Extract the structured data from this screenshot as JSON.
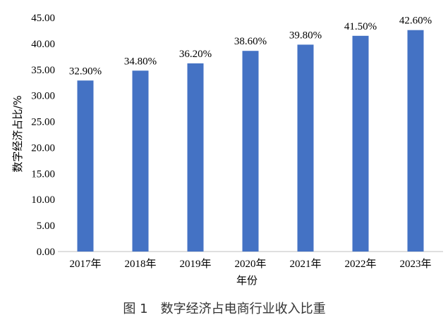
{
  "chart_data": {
    "type": "bar",
    "title": "",
    "xlabel": "年份",
    "ylabel": "数字经济占比/%",
    "ylim": [
      0,
      45
    ],
    "yticks": [
      "0.00",
      "5.00",
      "10.00",
      "15.00",
      "20.00",
      "25.00",
      "30.00",
      "35.00",
      "40.00",
      "45.00"
    ],
    "grid": false,
    "categories": [
      "2017年",
      "2018年",
      "2019年",
      "2020年",
      "2021年",
      "2022年",
      "2023年"
    ],
    "values": [
      32.9,
      34.8,
      36.2,
      38.6,
      39.8,
      41.5,
      42.6
    ],
    "data_labels": [
      "32.90%",
      "34.80%",
      "36.20%",
      "38.60%",
      "39.80%",
      "41.50%",
      "42.60%"
    ],
    "bar_color": "#4472C4"
  },
  "caption": "图 1　数字经济占电商行业收入比重"
}
